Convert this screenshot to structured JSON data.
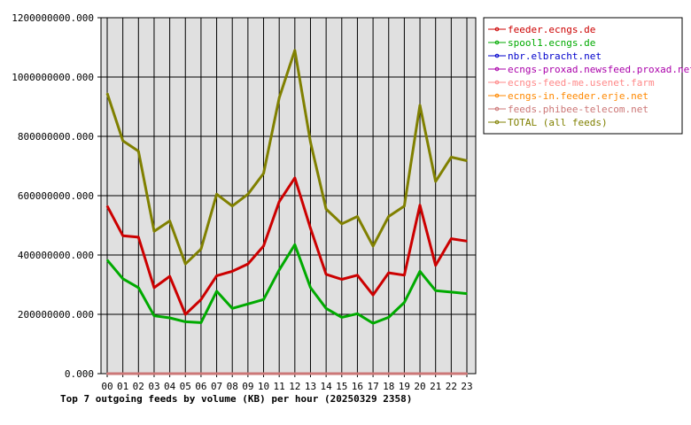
{
  "chart_data": {
    "type": "line",
    "title": "Top 7 outgoing feeds by volume (KB) per hour (20250329 2358)",
    "xlabel": "",
    "ylabel": "",
    "categories": [
      "00",
      "01",
      "02",
      "03",
      "04",
      "05",
      "06",
      "07",
      "08",
      "09",
      "10",
      "11",
      "12",
      "13",
      "14",
      "15",
      "16",
      "17",
      "18",
      "19",
      "20",
      "21",
      "22",
      "23"
    ],
    "ylim": [
      0,
      1200000000
    ],
    "yticks": [
      "0.000",
      "200000000.000",
      "400000000.000",
      "600000000.000",
      "800000000.000",
      "1000000000.000",
      "1200000000.000"
    ],
    "grid": true,
    "legend_position": "top-right",
    "series": [
      {
        "name": "feeder.ecngs.de",
        "color": "#cc0000",
        "values": [
          565000000,
          465000000,
          460000000,
          290000000,
          328000000,
          200000000,
          250000000,
          330000000,
          345000000,
          370000000,
          430000000,
          580000000,
          660000000,
          490000000,
          335000000,
          318000000,
          332000000,
          265000000,
          340000000,
          332000000,
          568000000,
          365000000,
          455000000,
          447000000
        ]
      },
      {
        "name": "spool1.ecngs.de",
        "color": "#00aa00",
        "values": [
          383000000,
          320000000,
          290000000,
          195000000,
          188000000,
          175000000,
          172000000,
          278000000,
          220000000,
          235000000,
          250000000,
          350000000,
          435000000,
          290000000,
          220000000,
          190000000,
          202000000,
          170000000,
          190000000,
          240000000,
          345000000,
          280000000,
          275000000,
          270000000
        ]
      },
      {
        "name": "nbr.elbracht.net",
        "color": "#0000cc",
        "values": [
          0,
          0,
          0,
          0,
          0,
          0,
          0,
          0,
          0,
          0,
          0,
          0,
          0,
          0,
          0,
          0,
          0,
          0,
          0,
          0,
          0,
          0,
          0,
          0
        ]
      },
      {
        "name": "ecngs-proxad.newsfeed.proxad.net",
        "color": "#aa00aa",
        "values": [
          0,
          0,
          0,
          0,
          0,
          0,
          0,
          0,
          0,
          0,
          0,
          0,
          0,
          0,
          0,
          0,
          0,
          0,
          0,
          0,
          0,
          0,
          0,
          0
        ]
      },
      {
        "name": "ecngs-feed-me.usenet.farm",
        "color": "#ff8888",
        "values": [
          0,
          0,
          0,
          0,
          0,
          0,
          0,
          0,
          0,
          0,
          0,
          0,
          0,
          0,
          0,
          0,
          0,
          0,
          0,
          0,
          0,
          0,
          0,
          0
        ]
      },
      {
        "name": "ecngs-in.feeder.erje.net",
        "color": "#ff8800",
        "values": [
          0,
          0,
          0,
          0,
          0,
          0,
          0,
          0,
          0,
          0,
          0,
          0,
          0,
          0,
          0,
          0,
          0,
          0,
          0,
          0,
          0,
          0,
          0,
          0
        ]
      },
      {
        "name": "feeds.phibee-telecom.net",
        "color": "#cc7777",
        "values": [
          0,
          0,
          0,
          0,
          0,
          0,
          0,
          0,
          0,
          0,
          0,
          0,
          0,
          0,
          0,
          0,
          0,
          0,
          0,
          0,
          0,
          0,
          0,
          0
        ]
      },
      {
        "name": "TOTAL (all feeds)",
        "color": "#808000",
        "values": [
          945000000,
          785000000,
          750000000,
          480000000,
          515000000,
          370000000,
          420000000,
          605000000,
          565000000,
          605000000,
          675000000,
          930000000,
          1090000000,
          780000000,
          555000000,
          505000000,
          530000000,
          430000000,
          530000000,
          565000000,
          905000000,
          648000000,
          730000000,
          718000000
        ]
      }
    ]
  }
}
